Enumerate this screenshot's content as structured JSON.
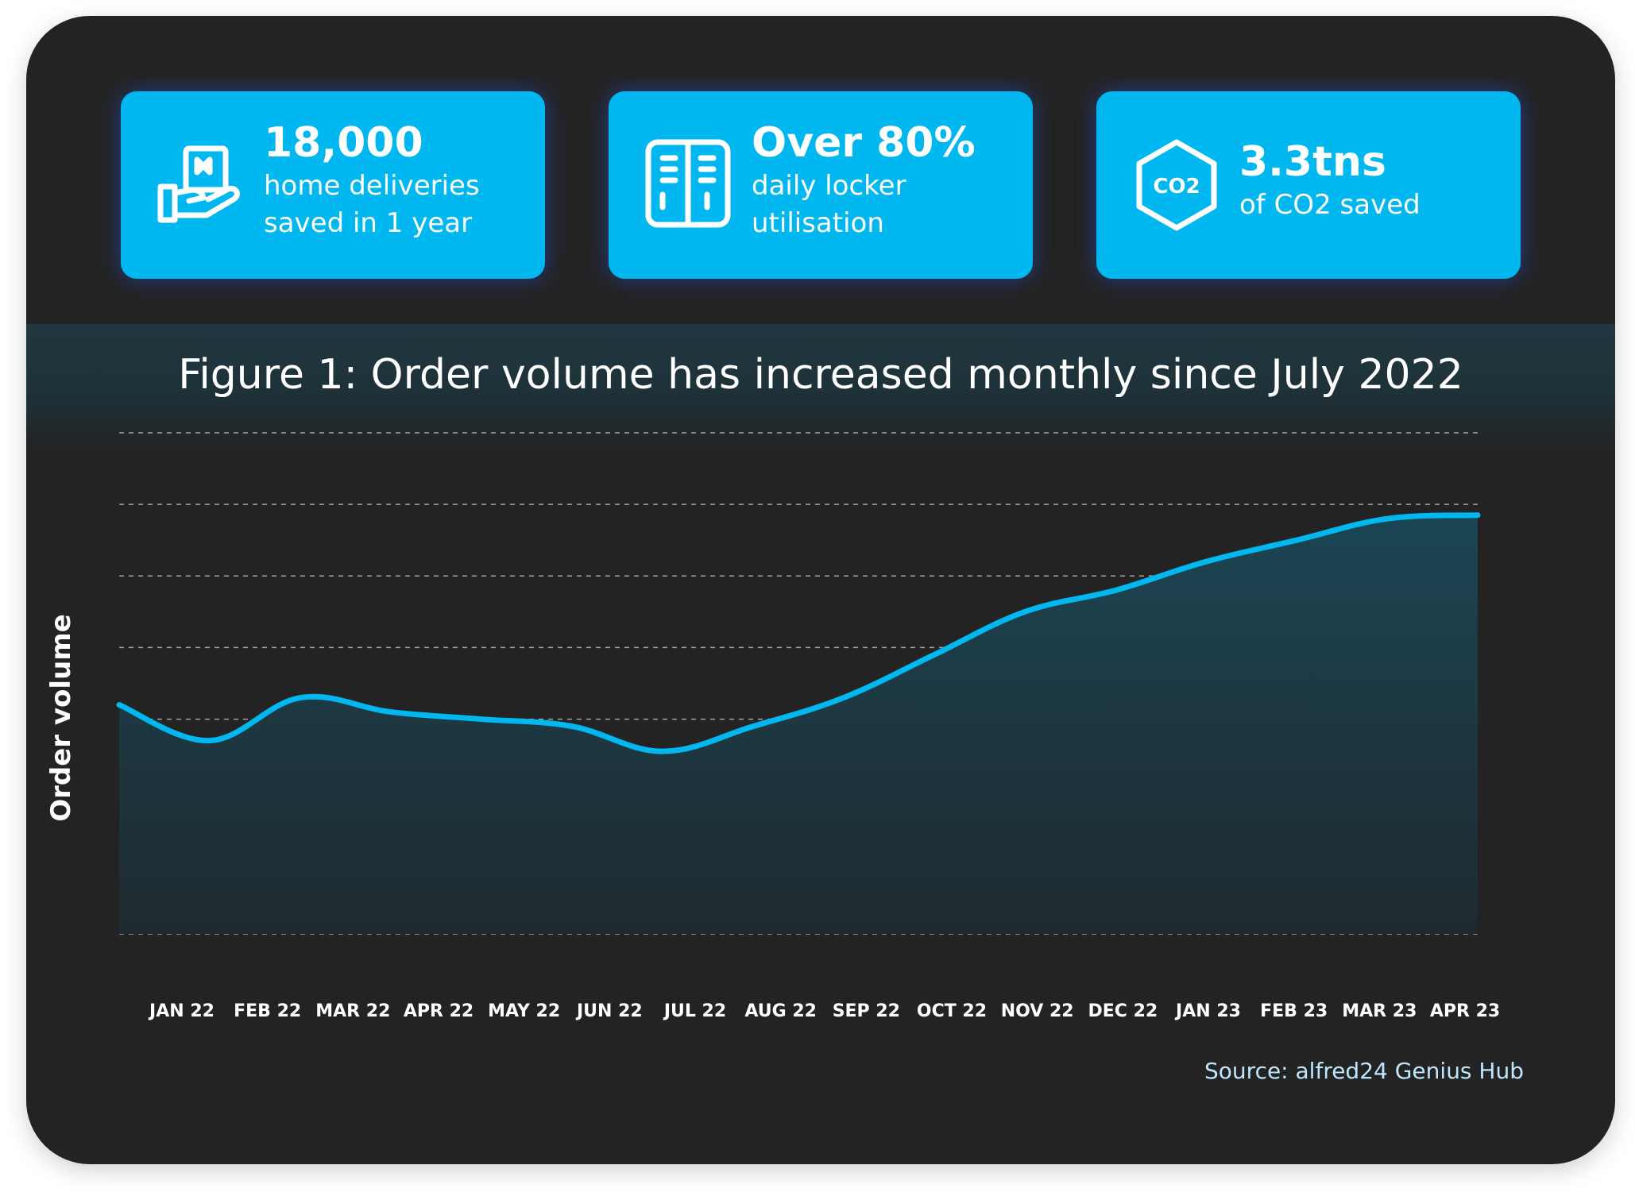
{
  "stats": [
    {
      "value": "18,000",
      "line1": "home deliveries",
      "line2": "saved in 1 year",
      "icon": "hand-package-icon"
    },
    {
      "value": "Over 80%",
      "line1": "daily locker",
      "line2": "utilisation",
      "icon": "locker-icon"
    },
    {
      "value": "3.3tns",
      "line1": "of CO2 saved",
      "icon": "co2-hexagon-icon",
      "icon_text": "CO2"
    }
  ],
  "colors": {
    "card": "#00b7ef",
    "background": "#232323",
    "line": "#00b7ef",
    "area": "#1b3b46",
    "grid": "#cfcfcf"
  },
  "source": "Source: alfred24 Genius Hub",
  "chart_data": {
    "type": "area",
    "title": "Figure 1: Order volume has increased monthly since July 2022",
    "xlabel": "",
    "ylabel": "Order volume",
    "categories": [
      "JAN 22",
      "FEB 22",
      "MAR 22",
      "APR 22",
      "MAY 22",
      "JUN 22",
      "JUL 22",
      "AUG 22",
      "SEP 22",
      "OCT 22",
      "NOV 22",
      "DEC 22",
      "JAN 23",
      "FEB 23",
      "MAR 23",
      "APR 23"
    ],
    "series": [
      {
        "values": [
          3.2,
          2.7,
          3.3,
          3.1,
          3.0,
          2.9,
          2.55,
          2.9,
          3.3,
          3.9,
          4.5,
          4.8,
          5.2,
          5.5,
          5.8,
          5.85
        ]
      }
    ],
    "ylim": [
      0,
      7
    ],
    "y_tick_labels_shown": false,
    "grid": "horizontal dashed",
    "legend": "none"
  }
}
